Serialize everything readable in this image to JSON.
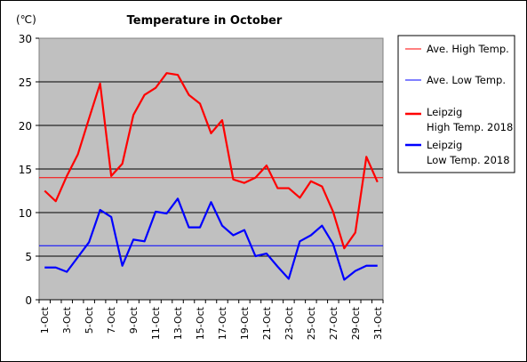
{
  "chart_data": {
    "type": "line",
    "title": "Temperature in October",
    "unit_label": "(℃)",
    "ylim": [
      0,
      30
    ],
    "yticks": [
      0,
      5,
      10,
      15,
      20,
      25,
      30
    ],
    "grid": "horizontal",
    "legend_position": "right",
    "days": [
      1,
      2,
      3,
      4,
      5,
      6,
      7,
      8,
      9,
      10,
      11,
      12,
      13,
      14,
      15,
      16,
      17,
      18,
      19,
      20,
      21,
      22,
      23,
      24,
      25,
      26,
      27,
      28,
      29,
      30,
      31
    ],
    "x_tick_labels": [
      "1-Oct",
      "3-Oct",
      "5-Oct",
      "7-Oct",
      "9-Oct",
      "11-Oct",
      "13-Oct",
      "15-Oct",
      "17-Oct",
      "19-Oct",
      "21-Oct",
      "23-Oct",
      "25-Oct",
      "27-Oct",
      "29-Oct",
      "31-Oct"
    ],
    "x_tick_days": [
      1,
      3,
      5,
      7,
      9,
      11,
      13,
      15,
      17,
      19,
      21,
      23,
      25,
      27,
      29,
      31
    ],
    "series": [
      {
        "name": "Ave. High Temp.",
        "color": "#ff0000",
        "style": "thin",
        "constant": 14.0
      },
      {
        "name": "Ave. Low Temp.",
        "color": "#0000ff",
        "style": "thin",
        "constant": 6.2
      },
      {
        "name_line1": "Leipzig",
        "name_line2": "High Temp. 2018",
        "color": "#ff0000",
        "style": "thick",
        "values": [
          12.5,
          11.3,
          14.2,
          16.7,
          20.8,
          24.8,
          14.2,
          15.6,
          21.2,
          23.5,
          24.3,
          26.0,
          25.8,
          23.5,
          22.5,
          19.1,
          20.6,
          13.8,
          13.4,
          14.0,
          15.4,
          12.8,
          12.8,
          11.7,
          13.6,
          13.0,
          10.1,
          5.9,
          7.7,
          16.4,
          13.5
        ]
      },
      {
        "name_line1": "Leipzig",
        "name_line2": "Low Temp. 2018",
        "color": "#0000ff",
        "style": "thick",
        "values": [
          3.7,
          3.7,
          3.2,
          4.9,
          6.6,
          10.3,
          9.5,
          3.9,
          6.9,
          6.7,
          10.1,
          9.9,
          11.6,
          8.3,
          8.3,
          11.2,
          8.5,
          7.4,
          8.0,
          5.0,
          5.3,
          3.8,
          2.4,
          6.7,
          7.4,
          8.5,
          6.4,
          2.3,
          3.3,
          3.9,
          3.9
        ]
      }
    ]
  }
}
